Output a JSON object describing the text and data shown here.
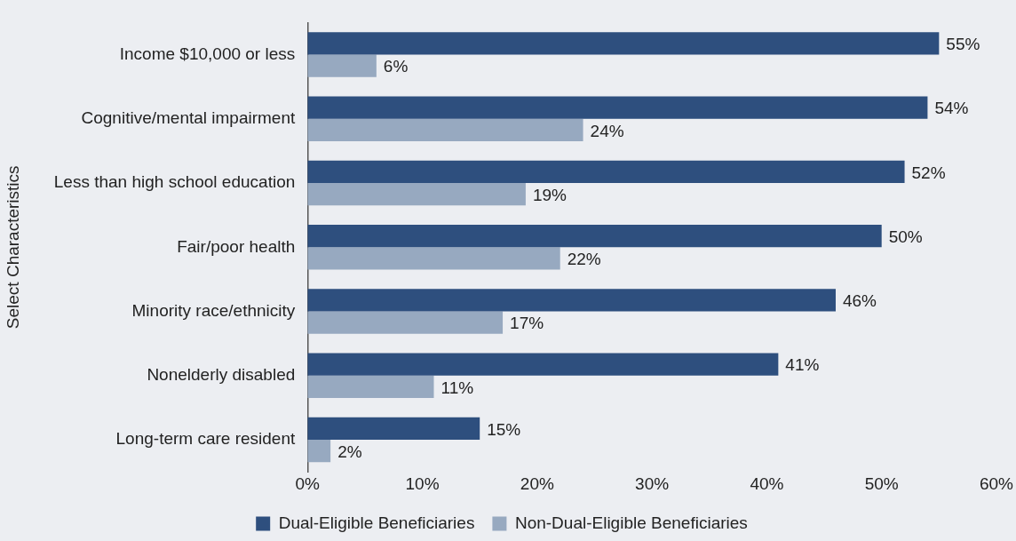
{
  "chart_data": {
    "type": "bar",
    "orientation": "horizontal",
    "ylabel": "Select Characteristics",
    "categories": [
      "Income $10,000 or less",
      "Cognitive/mental impairment",
      "Less than high school education",
      "Fair/poor health",
      "Minority race/ethnicity",
      "Nonelderly disabled",
      "Long-term care resident"
    ],
    "series": [
      {
        "name": "Dual-Eligible Beneficiaries",
        "color": "#2e4f7e",
        "values": [
          55,
          54,
          52,
          50,
          46,
          41,
          15
        ],
        "value_labels": [
          "55%",
          "54%",
          "52%",
          "50%",
          "46%",
          "41%",
          "15%"
        ]
      },
      {
        "name": "Non-Dual-Eligible Beneficiaries",
        "color": "#97a9c0",
        "values": [
          6,
          24,
          19,
          22,
          17,
          11,
          2
        ],
        "value_labels": [
          "6%",
          "24%",
          "19%",
          "22%",
          "17%",
          "11%",
          "2%"
        ]
      }
    ],
    "xlim": [
      0,
      60
    ],
    "xticks": [
      {
        "value": 0,
        "label": "0%"
      },
      {
        "value": 10,
        "label": "10%"
      },
      {
        "value": 20,
        "label": "20%"
      },
      {
        "value": 30,
        "label": "30%"
      },
      {
        "value": 40,
        "label": "40%"
      },
      {
        "value": 50,
        "label": "50%"
      },
      {
        "value": 60,
        "label": "60%"
      }
    ],
    "grid": false,
    "legend": "bottom"
  }
}
